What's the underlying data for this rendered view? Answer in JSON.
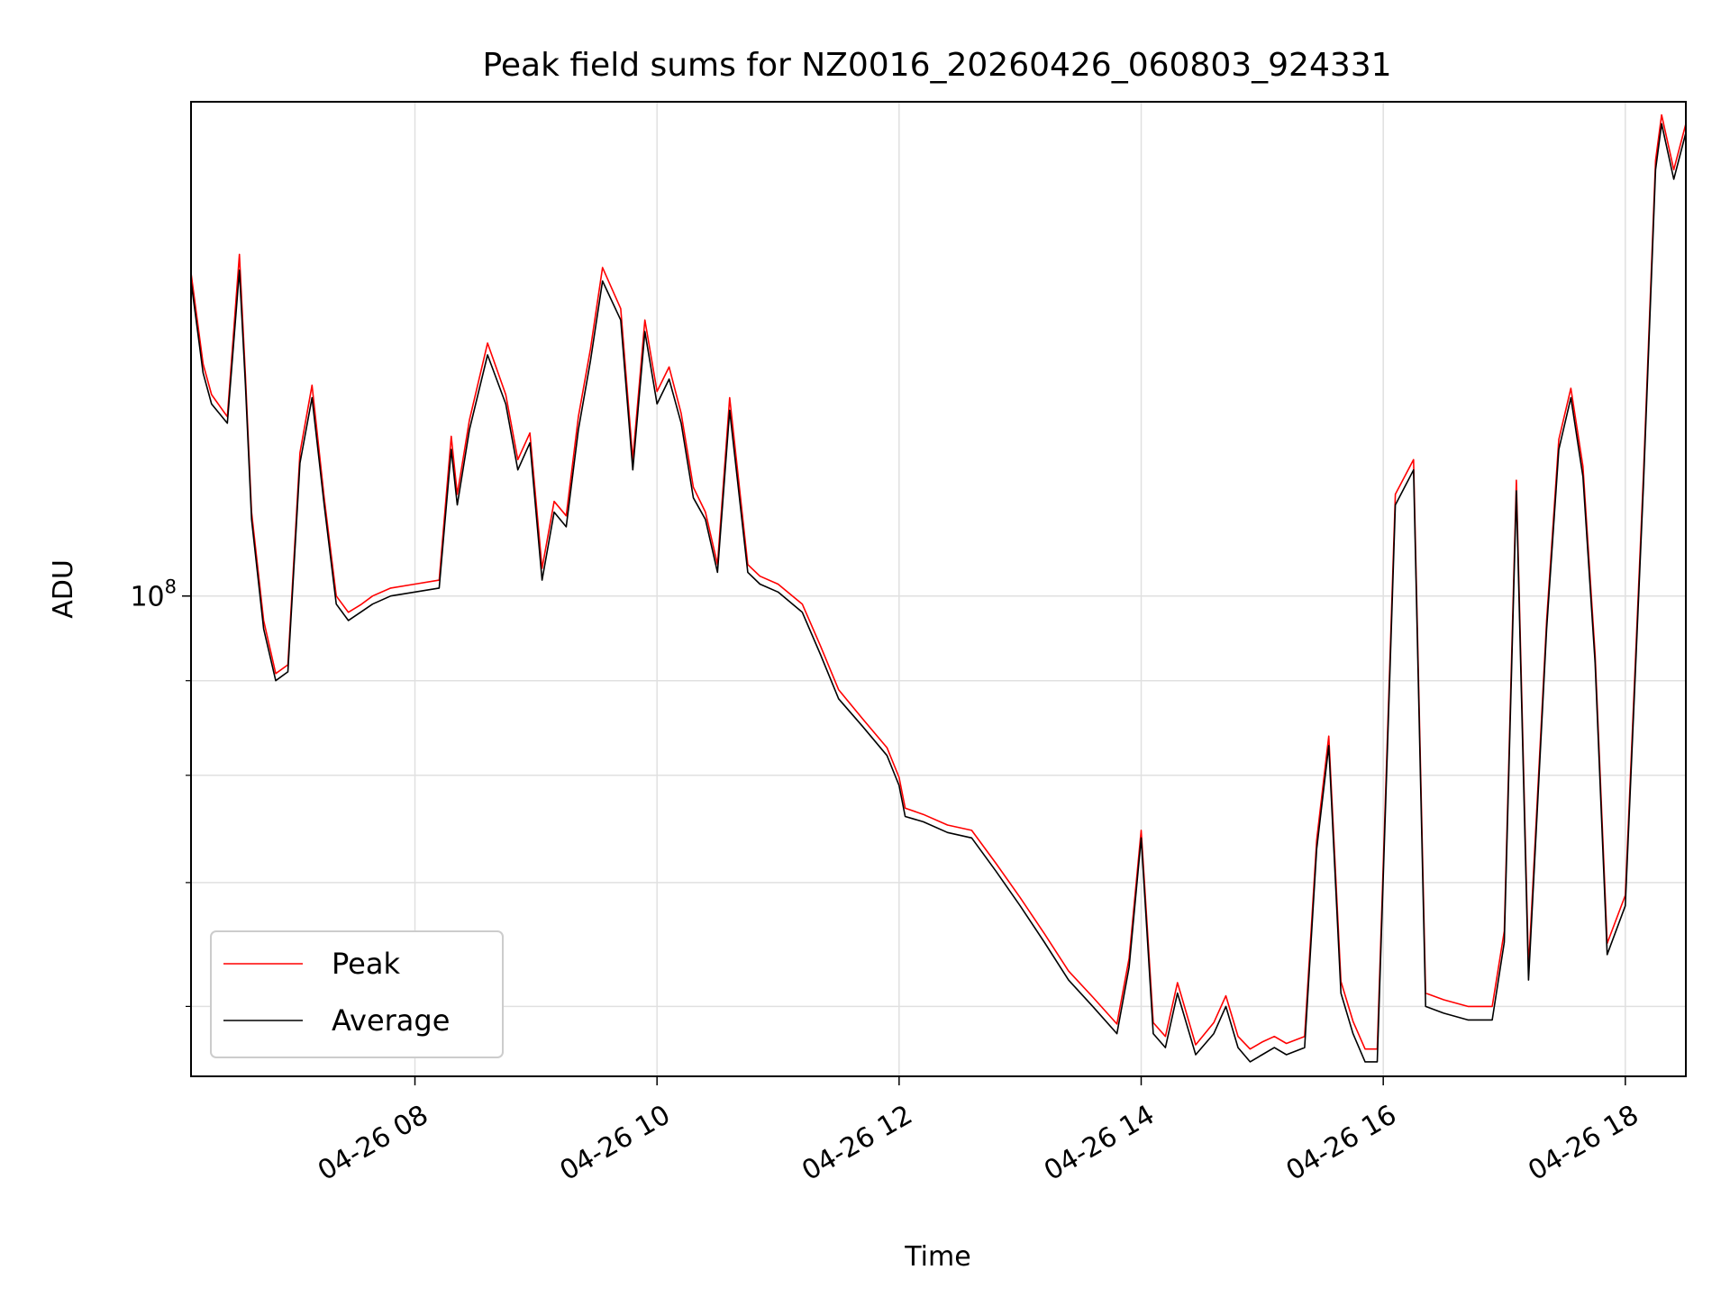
{
  "chart_data": {
    "type": "line",
    "title": "Peak field sums for NZ0016_20260426_060803_924331",
    "xlabel": "Time",
    "ylabel": "ADU",
    "yscale": "log",
    "ylim": [
      55000000,
      185000000
    ],
    "xlim_hours": [
      6.15,
      18.5
    ],
    "grid": true,
    "legend_position": "lower-left",
    "x_ticks": [
      {
        "hour": 8,
        "label": "04-26 08"
      },
      {
        "hour": 10,
        "label": "04-26 10"
      },
      {
        "hour": 12,
        "label": "04-26 12"
      },
      {
        "hour": 14,
        "label": "04-26 14"
      },
      {
        "hour": 16,
        "label": "04-26 16"
      },
      {
        "hour": 18,
        "label": "04-26 18"
      }
    ],
    "y_major_ticks": [
      {
        "value": 100000000,
        "base": "10",
        "exp": "8"
      }
    ],
    "y_minor_ticks": [
      60000000,
      70000000,
      80000000,
      90000000
    ],
    "series_colors": {
      "Peak": "#ff0000",
      "Average": "#000000"
    },
    "series": [
      {
        "name": "Average",
        "x_hours": [
          6.15,
          6.25,
          6.32,
          6.45,
          6.55,
          6.6,
          6.65,
          6.75,
          6.85,
          6.95,
          7.05,
          7.15,
          7.25,
          7.35,
          7.45,
          7.55,
          7.65,
          7.8,
          8.0,
          8.2,
          8.3,
          8.35,
          8.45,
          8.6,
          8.75,
          8.85,
          8.95,
          9.05,
          9.15,
          9.25,
          9.35,
          9.45,
          9.55,
          9.7,
          9.8,
          9.9,
          10.0,
          10.1,
          10.2,
          10.3,
          10.4,
          10.5,
          10.6,
          10.75,
          10.85,
          11.0,
          11.2,
          11.35,
          11.5,
          11.7,
          11.9,
          12.0,
          12.05,
          12.2,
          12.4,
          12.6,
          12.8,
          13.0,
          13.2,
          13.4,
          13.6,
          13.8,
          13.9,
          14.0,
          14.1,
          14.2,
          14.3,
          14.45,
          14.6,
          14.7,
          14.8,
          14.9,
          15.0,
          15.1,
          15.2,
          15.35,
          15.45,
          15.55,
          15.65,
          15.75,
          15.85,
          15.95,
          16.1,
          16.25,
          16.35,
          16.5,
          16.7,
          16.9,
          17.0,
          17.1,
          17.2,
          17.35,
          17.45,
          17.55,
          17.65,
          17.75,
          17.85,
          18.0,
          18.15,
          18.25,
          18.3,
          18.4,
          18.5
        ],
        "values": [
          148000000,
          132000000,
          127000000,
          124000000,
          150000000,
          130000000,
          110000000,
          96000000,
          90000000,
          91000000,
          118000000,
          128000000,
          112000000,
          99000000,
          97000000,
          98000000,
          99000000,
          100000000,
          100500000,
          101000000,
          120000000,
          112000000,
          123000000,
          135000000,
          127000000,
          117000000,
          121000000,
          102000000,
          111000000,
          109000000,
          123000000,
          134000000,
          148000000,
          141000000,
          117000000,
          139000000,
          127000000,
          131000000,
          124000000,
          113000000,
          110000000,
          103000000,
          126000000,
          103000000,
          101500000,
          100500000,
          98000000,
          93000000,
          88000000,
          85000000,
          82000000,
          79000000,
          76000000,
          75500000,
          74500000,
          74000000,
          71000000,
          68000000,
          65000000,
          62000000,
          60000000,
          58000000,
          63000000,
          74000000,
          58000000,
          57000000,
          61000000,
          56500000,
          58000000,
          60000000,
          57000000,
          56000000,
          56500000,
          57000000,
          56500000,
          57000000,
          73000000,
          83000000,
          61000000,
          58000000,
          56000000,
          56000000,
          112000000,
          117000000,
          60000000,
          59500000,
          59000000,
          59000000,
          65000000,
          114000000,
          62000000,
          96000000,
          120000000,
          128000000,
          116000000,
          92000000,
          64000000,
          68000000,
          115000000,
          170000000,
          180000000,
          168000000,
          178000000
        ]
      },
      {
        "name": "Peak",
        "x_hours": [
          6.15,
          6.25,
          6.32,
          6.45,
          6.55,
          6.6,
          6.65,
          6.75,
          6.85,
          6.95,
          7.05,
          7.15,
          7.25,
          7.35,
          7.45,
          7.55,
          7.65,
          7.8,
          8.0,
          8.2,
          8.3,
          8.35,
          8.45,
          8.6,
          8.75,
          8.85,
          8.95,
          9.05,
          9.15,
          9.25,
          9.35,
          9.45,
          9.55,
          9.7,
          9.8,
          9.9,
          10.0,
          10.1,
          10.2,
          10.3,
          10.4,
          10.5,
          10.6,
          10.75,
          10.85,
          11.0,
          11.2,
          11.35,
          11.5,
          11.7,
          11.9,
          12.0,
          12.05,
          12.2,
          12.4,
          12.6,
          12.8,
          13.0,
          13.2,
          13.4,
          13.6,
          13.8,
          13.9,
          14.0,
          14.1,
          14.2,
          14.3,
          14.45,
          14.6,
          14.7,
          14.8,
          14.9,
          15.0,
          15.1,
          15.2,
          15.35,
          15.45,
          15.55,
          15.65,
          15.75,
          15.85,
          15.95,
          16.1,
          16.25,
          16.35,
          16.5,
          16.7,
          16.9,
          17.0,
          17.1,
          17.2,
          17.35,
          17.45,
          17.55,
          17.65,
          17.75,
          17.85,
          18.0,
          18.15,
          18.25,
          18.3,
          18.4,
          18.5
        ],
        "values": [
          149500000,
          133500000,
          128500000,
          125000000,
          153000000,
          131500000,
          111000000,
          97000000,
          90800000,
          91800000,
          119500000,
          130000000,
          113000000,
          100000000,
          98000000,
          98900000,
          100000000,
          101000000,
          101500000,
          102000000,
          122000000,
          113500000,
          124500000,
          137000000,
          128500000,
          118500000,
          122500000,
          103500000,
          112500000,
          110500000,
          125000000,
          136000000,
          150500000,
          143000000,
          118500000,
          141000000,
          129000000,
          133000000,
          125500000,
          114500000,
          111000000,
          104000000,
          128000000,
          104000000,
          102500000,
          101500000,
          99000000,
          94000000,
          89000000,
          85800000,
          82800000,
          79800000,
          76800000,
          76200000,
          75200000,
          74700000,
          71700000,
          68700000,
          65700000,
          62700000,
          60700000,
          58700000,
          63700000,
          74700000,
          58800000,
          57800000,
          61800000,
          57200000,
          58800000,
          60800000,
          57800000,
          56900000,
          57400000,
          57800000,
          57300000,
          57800000,
          73800000,
          84000000,
          61900000,
          58900000,
          56900000,
          56900000,
          113500000,
          118500000,
          61000000,
          60500000,
          60000000,
          60000000,
          65900000,
          115500000,
          62900000,
          97000000,
          121500000,
          129500000,
          117500000,
          93000000,
          64900000,
          68900000,
          116500000,
          172000000,
          182000000,
          170000000,
          180000000
        ]
      }
    ]
  }
}
